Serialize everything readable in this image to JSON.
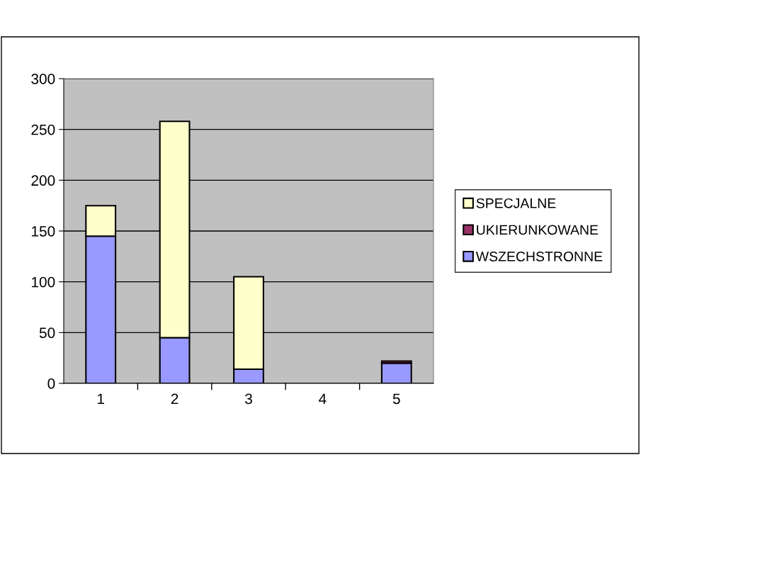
{
  "chart_data": {
    "type": "bar",
    "stacked": true,
    "categories": [
      "1",
      "2",
      "3",
      "4",
      "5"
    ],
    "series": [
      {
        "name": "WSZECHSTRONNE",
        "color": "#9999ff",
        "values": [
          145,
          45,
          14,
          null,
          20
        ]
      },
      {
        "name": "UKIERUNKOWANE",
        "color": "#993366",
        "values": [
          null,
          null,
          null,
          null,
          2
        ]
      },
      {
        "name": "SPECJALNE",
        "color": "#ffffcc",
        "values": [
          30,
          213,
          91,
          null,
          null
        ]
      }
    ],
    "ylim": [
      0,
      300
    ],
    "yticks": [
      0,
      50,
      100,
      150,
      200,
      250,
      300
    ],
    "grid": "y",
    "legend": "right"
  }
}
